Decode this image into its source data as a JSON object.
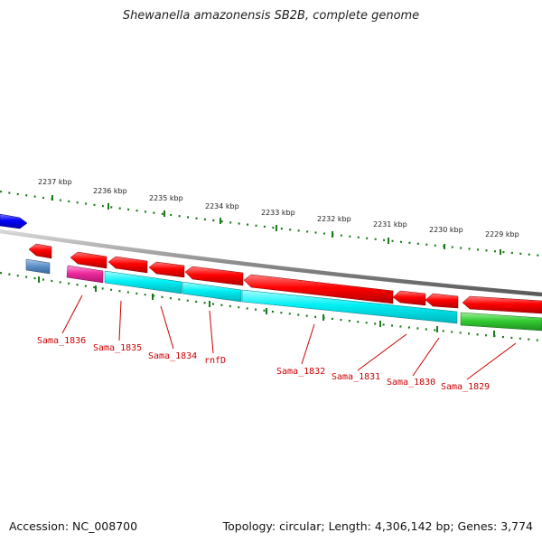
{
  "title": "Shewanella amazonensis SB2B, complete genome",
  "footer": {
    "accession": "Accession: NC_008700",
    "topology_info": "Topology: circular; Length: 4,306,142 bp; Genes: 3,774"
  },
  "colors": {
    "backbone": "#8c8c8c",
    "ticks": "#1a7a1a",
    "gene_forward": "#e60000",
    "gene_reverse_cyan": "#00e5ee",
    "gene_reverse_magenta": "#e8229a",
    "gene_reverse_green": "#33cc33",
    "gene_steelblue": "#5b8fc7",
    "gene_blue": "#1a1aff",
    "label": "#cc0000"
  },
  "kbp_labels": [
    {
      "text": "2237 kbp"
    },
    {
      "text": "2236 kbp"
    },
    {
      "text": "2235 kbp"
    },
    {
      "text": "2234 kbp"
    },
    {
      "text": "2233 kbp"
    },
    {
      "text": "2232 kbp"
    },
    {
      "text": "2231 kbp"
    },
    {
      "text": "2230 kbp"
    },
    {
      "text": "2229 kbp"
    }
  ],
  "gene_labels": [
    {
      "text": "Sama_1836"
    },
    {
      "text": "Sama_1835"
    },
    {
      "text": "Sama_1834"
    },
    {
      "text": "rnfD"
    },
    {
      "text": "Sama_1832"
    },
    {
      "text": "Sama_1831"
    },
    {
      "text": "Sama_1830"
    },
    {
      "text": "Sama_1829"
    }
  ]
}
